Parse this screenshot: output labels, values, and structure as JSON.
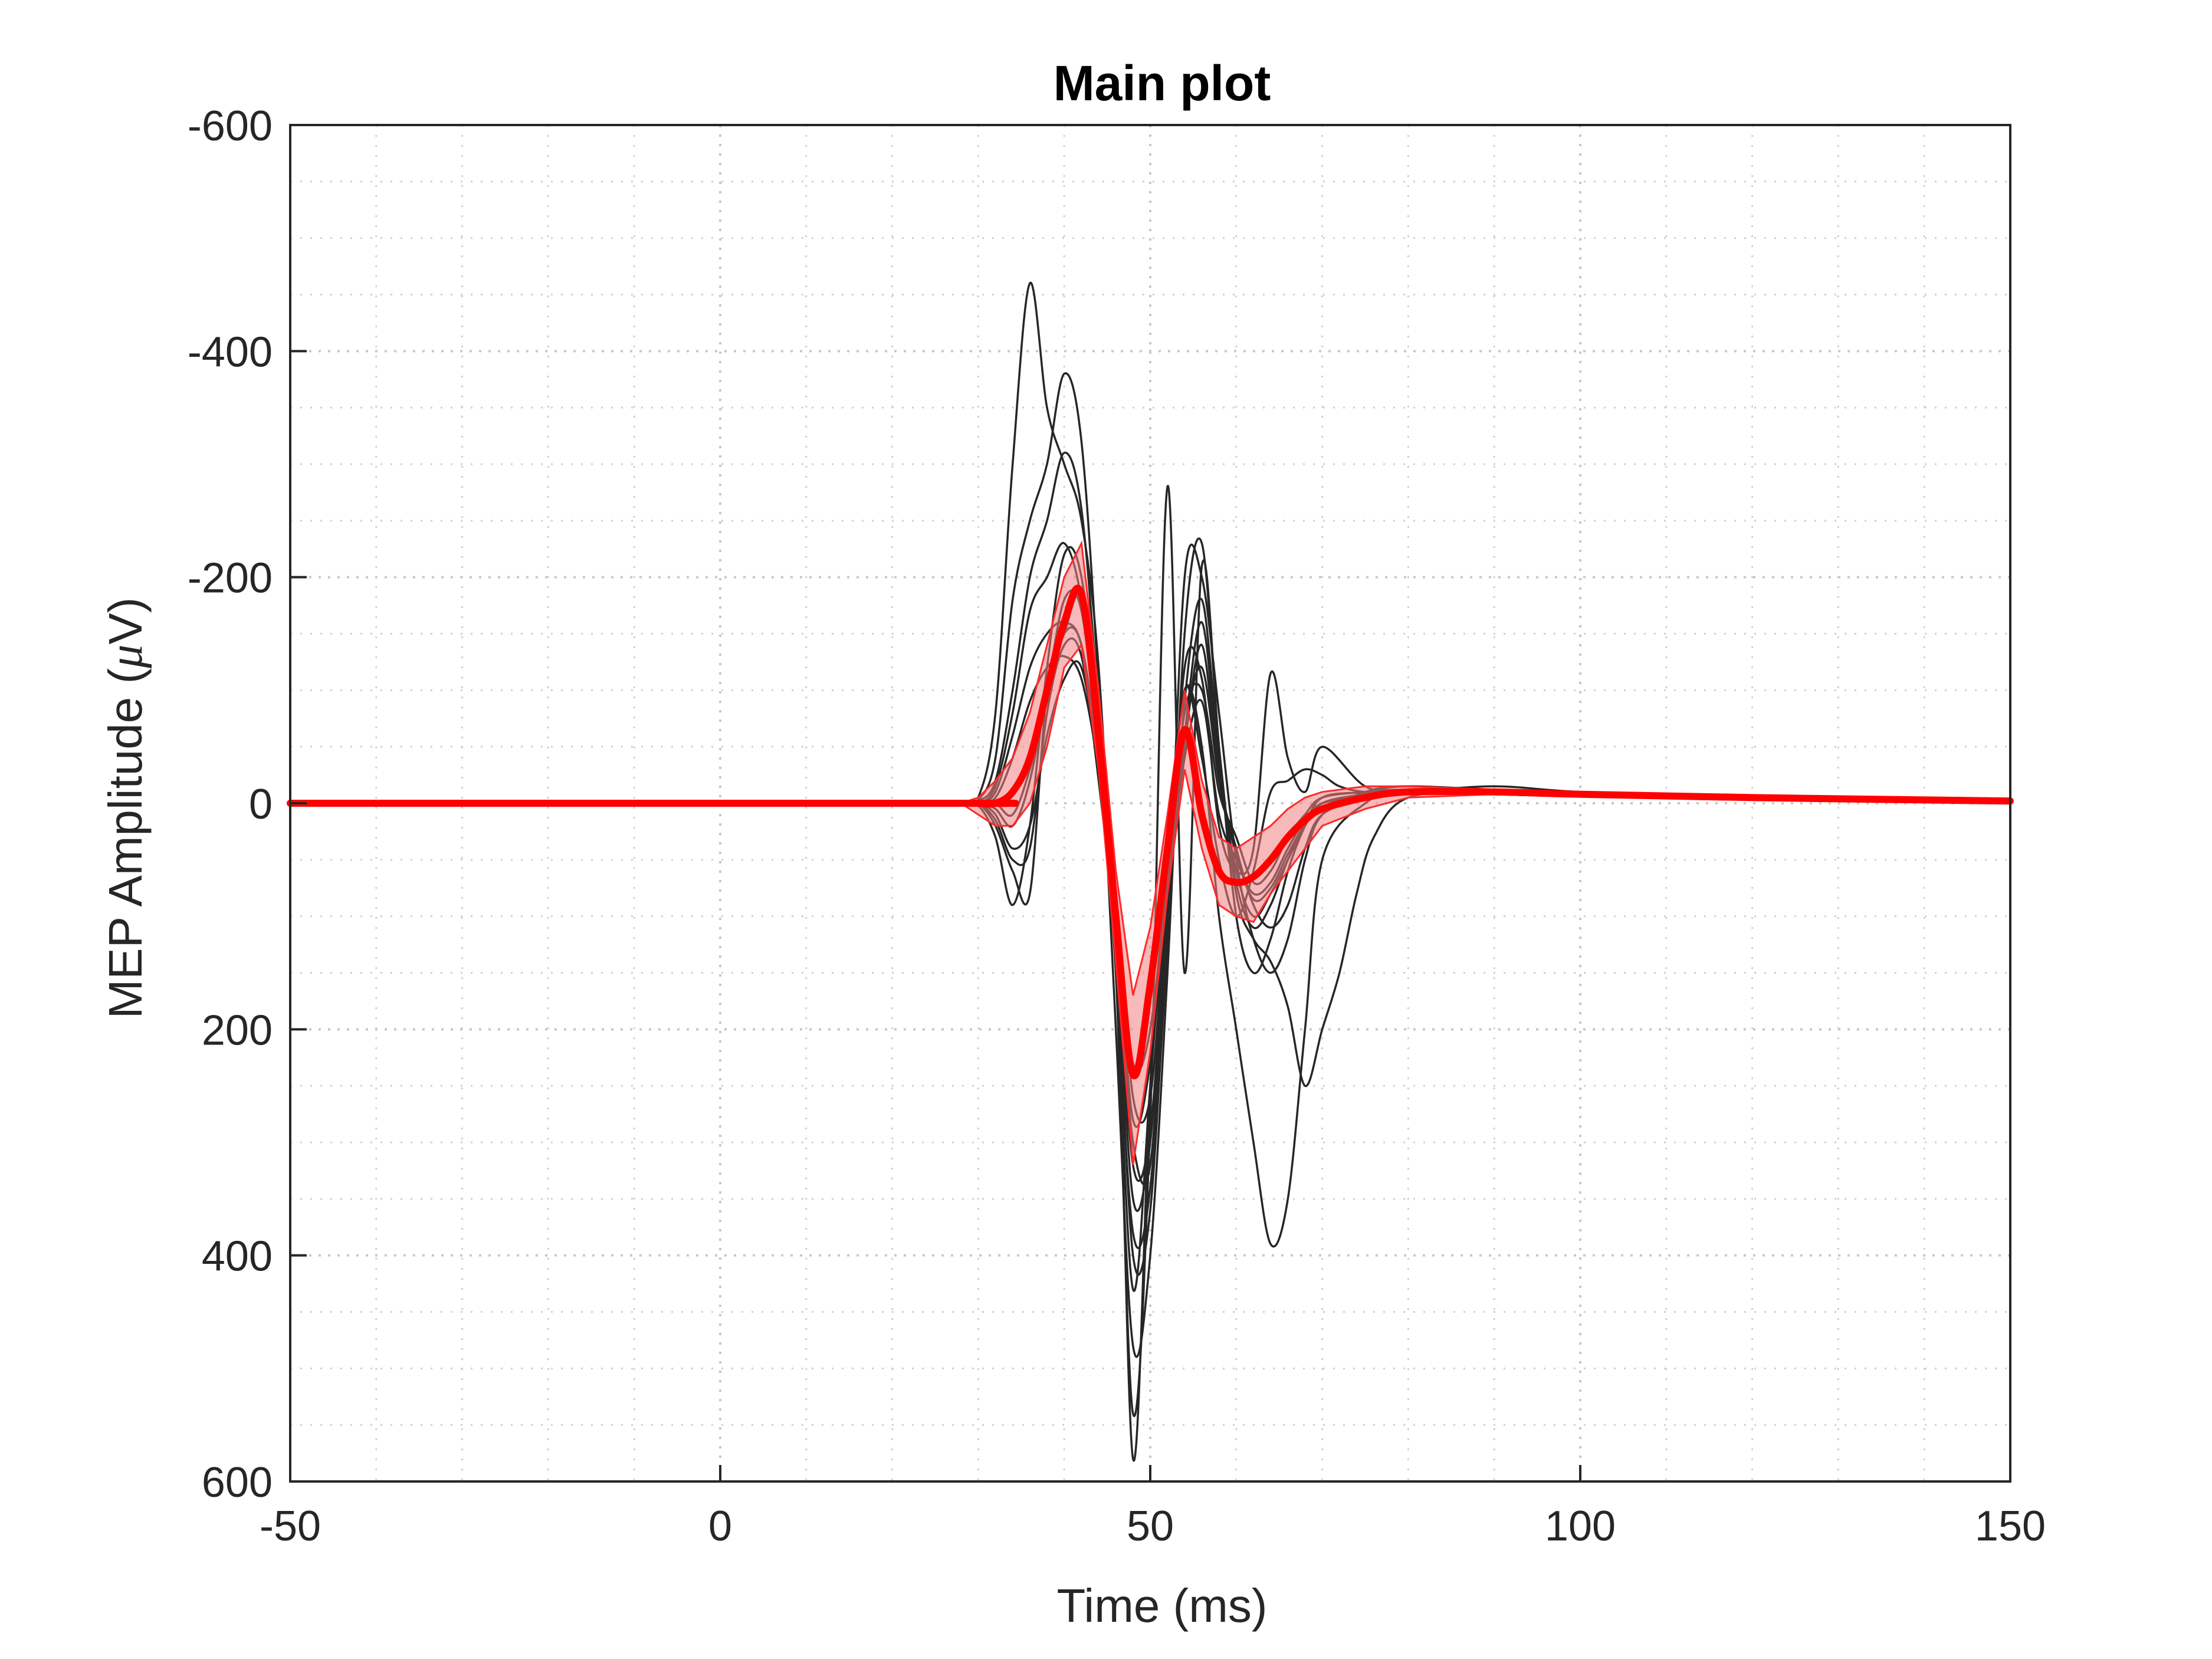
{
  "chart_data": {
    "type": "line",
    "title": "Main plot",
    "xlabel": "Time (ms)",
    "ylabel_prefix": "MEP Amplitude (",
    "ylabel_mu": "μ",
    "ylabel_suffix": "V)",
    "xlim": [
      -50,
      150
    ],
    "ylim": [
      -600,
      600
    ],
    "y_reversed": true,
    "grid": true,
    "minor_grid": true,
    "x_ticks": [
      -50,
      0,
      50,
      100,
      150
    ],
    "x_tick_labels": [
      "-50",
      "0",
      "50",
      "100",
      "150"
    ],
    "y_ticks": [
      -600,
      -400,
      -200,
      0,
      200,
      400,
      600
    ],
    "y_tick_labels": [
      "-600",
      "-400",
      "-200",
      "0",
      "200",
      "400",
      "600"
    ],
    "colors": {
      "trials": "#262626",
      "mean": "#ff0000",
      "band": "#f08080"
    },
    "trials": [
      {
        "x": [
          -50,
          28,
          30,
          32,
          34,
          36,
          38,
          40,
          42,
          44,
          46,
          48,
          50,
          52,
          54,
          56,
          58,
          60,
          62,
          64,
          66,
          68,
          70,
          72,
          75,
          80,
          90,
          100,
          120,
          150
        ],
        "y": [
          0,
          0,
          -5,
          -80,
          -300,
          -460,
          -350,
          -300,
          -250,
          -120,
          150,
          430,
          250,
          60,
          -100,
          -40,
          50,
          100,
          60,
          -10,
          -20,
          -30,
          -25,
          -15,
          -10,
          -10,
          -15,
          -10,
          -5,
          -2
        ]
      },
      {
        "x": [
          -50,
          28,
          30,
          32,
          34,
          36,
          38,
          40,
          42,
          44,
          46,
          48,
          50,
          52,
          54,
          56,
          58,
          60,
          62,
          64,
          66,
          68,
          70,
          75,
          80,
          90,
          100,
          120,
          150
        ],
        "y": [
          0,
          0,
          -3,
          -40,
          -180,
          -250,
          -300,
          -380,
          -320,
          -100,
          200,
          480,
          400,
          150,
          -150,
          -230,
          -50,
          100,
          150,
          120,
          60,
          20,
          -5,
          -10,
          -15,
          -10,
          -8,
          -5,
          -2
        ]
      },
      {
        "x": [
          -50,
          28,
          30,
          32,
          34,
          36,
          38,
          40,
          42,
          44,
          46,
          48,
          50,
          52,
          54,
          56,
          58,
          60,
          62,
          64,
          66,
          68,
          70,
          75,
          80,
          90,
          100,
          120,
          150
        ],
        "y": [
          0,
          0,
          -2,
          -20,
          -100,
          -200,
          -250,
          -310,
          -260,
          -80,
          150,
          380,
          340,
          120,
          -200,
          -200,
          -80,
          50,
          120,
          150,
          120,
          50,
          10,
          -10,
          -15,
          -12,
          -10,
          -6,
          -3
        ]
      },
      {
        "x": [
          -50,
          28,
          30,
          32,
          34,
          36,
          38,
          40,
          42,
          44,
          46,
          48,
          50,
          52,
          54,
          56,
          58,
          60,
          62,
          64,
          66,
          68,
          70,
          75,
          80,
          90,
          100,
          120,
          150
        ],
        "y": [
          0,
          0,
          0,
          20,
          60,
          80,
          -100,
          -150,
          -180,
          -50,
          100,
          580,
          250,
          50,
          -100,
          -50,
          100,
          200,
          300,
          390,
          350,
          200,
          50,
          0,
          -10,
          -10,
          -8,
          -5,
          -2
        ]
      },
      {
        "x": [
          -50,
          28,
          30,
          32,
          34,
          36,
          38,
          40,
          42,
          44,
          46,
          48,
          50,
          52,
          54,
          56,
          58,
          60,
          62,
          64,
          66,
          68,
          70,
          72,
          74,
          76,
          80,
          90,
          100,
          120,
          150
        ],
        "y": [
          0,
          0,
          2,
          30,
          90,
          20,
          -120,
          -220,
          -200,
          -60,
          150,
          540,
          280,
          -280,
          150,
          -210,
          -50,
          80,
          120,
          140,
          180,
          250,
          200,
          150,
          80,
          30,
          -5,
          -10,
          -8,
          -4,
          -2
        ]
      },
      {
        "x": [
          -50,
          28,
          30,
          32,
          34,
          36,
          38,
          40,
          42,
          44,
          46,
          48,
          50,
          52,
          54,
          56,
          58,
          60,
          62,
          64,
          66,
          68,
          70,
          75,
          80,
          90,
          100,
          120,
          150
        ],
        "y": [
          0,
          0,
          0,
          15,
          50,
          40,
          -80,
          -140,
          -130,
          -20,
          120,
          300,
          320,
          100,
          -120,
          -110,
          20,
          60,
          40,
          -115,
          -40,
          -10,
          -50,
          -15,
          -10,
          -8,
          -6,
          -4,
          -2
        ]
      },
      {
        "x": [
          -50,
          28,
          30,
          32,
          34,
          36,
          38,
          40,
          42,
          44,
          46,
          48,
          50,
          52,
          54,
          56,
          58,
          60,
          62,
          64,
          66,
          68,
          70,
          75,
          80,
          90,
          100,
          120,
          150
        ],
        "y": [
          0,
          0,
          0,
          -10,
          -60,
          -120,
          -150,
          -160,
          -140,
          -40,
          80,
          260,
          260,
          80,
          -60,
          -120,
          -20,
          40,
          90,
          110,
          90,
          40,
          10,
          -5,
          -10,
          -8,
          -6,
          -4,
          -2
        ]
      },
      {
        "x": [
          -50,
          28,
          30,
          32,
          34,
          36,
          38,
          40,
          42,
          44,
          46,
          48,
          50,
          52,
          54,
          56,
          58,
          60,
          62,
          64,
          66,
          68,
          70,
          75,
          80,
          90,
          100,
          120,
          150
        ],
        "y": [
          0,
          0,
          0,
          -5,
          -40,
          -90,
          -120,
          -130,
          -110,
          -30,
          90,
          230,
          200,
          60,
          -80,
          -100,
          -10,
          30,
          70,
          60,
          30,
          10,
          -5,
          -10,
          -12,
          -10,
          -8,
          -5,
          -2
        ]
      },
      {
        "x": [
          -50,
          28,
          30,
          32,
          34,
          36,
          38,
          40,
          42,
          44,
          46,
          48,
          50,
          52,
          54,
          56,
          58,
          60,
          62,
          64,
          66,
          68,
          70,
          75,
          80,
          90,
          100,
          120,
          150
        ],
        "y": [
          0,
          0,
          0,
          5,
          20,
          -20,
          -100,
          -180,
          -170,
          -40,
          120,
          350,
          300,
          100,
          -60,
          -160,
          -30,
          60,
          100,
          80,
          50,
          20,
          0,
          -8,
          -12,
          -10,
          -8,
          -5,
          -2
        ]
      },
      {
        "x": [
          -50,
          28,
          30,
          32,
          34,
          36,
          38,
          40,
          42,
          44,
          46,
          48,
          50,
          52,
          54,
          56,
          58,
          60,
          62,
          64,
          66,
          68,
          70,
          75,
          80,
          90,
          100,
          120,
          150
        ],
        "y": [
          0,
          0,
          0,
          10,
          40,
          20,
          -60,
          -110,
          -120,
          -30,
          100,
          280,
          230,
          80,
          -40,
          -90,
          10,
          50,
          80,
          70,
          40,
          15,
          0,
          -5,
          -10,
          -8,
          -6,
          -4,
          -2
        ]
      },
      {
        "x": [
          -50,
          28,
          30,
          32,
          34,
          36,
          38,
          40,
          42,
          44,
          46,
          48,
          50,
          52,
          54,
          56,
          58,
          60,
          62,
          64,
          66,
          68,
          70,
          75,
          80,
          90,
          100,
          120,
          150
        ],
        "y": [
          0,
          0,
          0,
          -15,
          -80,
          -170,
          -200,
          -230,
          -180,
          -50,
          130,
          400,
          360,
          120,
          -90,
          -180,
          -40,
          70,
          110,
          90,
          50,
          20,
          0,
          -8,
          -12,
          -10,
          -8,
          -5,
          -2
        ]
      },
      {
        "x": [
          -50,
          28,
          30,
          32,
          34,
          36,
          38,
          40,
          42,
          44,
          46,
          48,
          50,
          52,
          54,
          56,
          58,
          60,
          62,
          64,
          66,
          68,
          70,
          75,
          80,
          90,
          100,
          120,
          150
        ],
        "y": [
          0,
          0,
          0,
          0,
          10,
          -30,
          -90,
          -150,
          -140,
          -35,
          110,
          320,
          290,
          90,
          -50,
          -140,
          -20,
          45,
          85,
          75,
          45,
          18,
          0,
          -6,
          -10,
          -8,
          -6,
          -4,
          -2
        ]
      }
    ],
    "mean": {
      "x": [
        -50,
        28,
        30,
        32,
        34,
        36,
        38,
        40,
        42,
        44,
        46,
        48,
        50,
        52,
        54,
        56,
        58,
        60,
        62,
        64,
        66,
        68,
        70,
        75,
        80,
        90,
        100,
        120,
        150
      ],
      "y": [
        0,
        0,
        0,
        0,
        -10,
        -40,
        -100,
        -160,
        -185,
        -60,
        100,
        240,
        160,
        40,
        -65,
        10,
        60,
        70,
        65,
        50,
        30,
        15,
        5,
        -5,
        -10,
        -10,
        -8,
        -5,
        -2
      ]
    },
    "band": {
      "x": [
        28,
        30,
        32,
        34,
        36,
        38,
        40,
        42,
        44,
        46,
        48,
        50,
        52,
        54,
        56,
        58,
        60,
        62,
        64,
        66,
        68,
        70,
        75,
        80,
        90,
        100,
        120,
        150
      ],
      "upper": [
        0,
        10,
        20,
        20,
        0,
        -50,
        -120,
        -140,
        -30,
        140,
        320,
        220,
        80,
        -30,
        40,
        90,
        100,
        105,
        80,
        60,
        40,
        20,
        5,
        -5,
        -8,
        -6,
        -4,
        -2
      ],
      "lower": [
        0,
        -5,
        -20,
        -40,
        -80,
        -140,
        -200,
        -230,
        -100,
        60,
        170,
        110,
        10,
        -100,
        -20,
        30,
        40,
        30,
        20,
        5,
        -5,
        -10,
        -15,
        -15,
        -12,
        -10,
        -6,
        -2
      ]
    }
  }
}
